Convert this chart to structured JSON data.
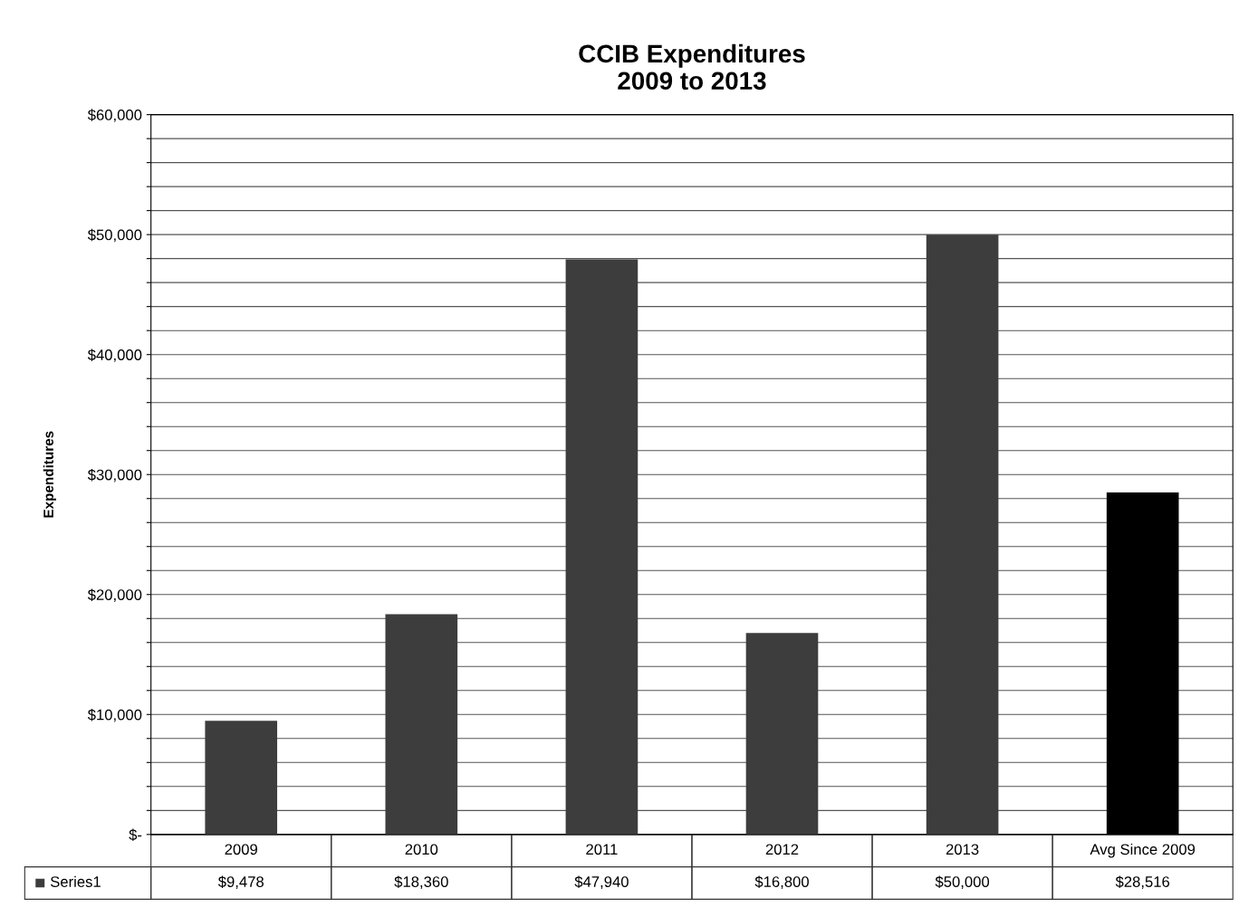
{
  "chart_data": {
    "type": "bar",
    "title": "CCIB Expenditures\n2009 to 2013",
    "ylabel": "Expenditures",
    "categories": [
      "2009",
      "2010",
      "2011",
      "2012",
      "2013",
      "Avg Since 2009"
    ],
    "series": [
      {
        "name": "Series1",
        "color": "#3d3d3d",
        "colors": [
          "#3d3d3d",
          "#3d3d3d",
          "#3d3d3d",
          "#3d3d3d",
          "#3d3d3d",
          "#000000"
        ],
        "values": [
          9478,
          18360,
          47940,
          16800,
          50000,
          28516
        ],
        "value_labels": [
          "$9,478",
          "$18,360",
          "$47,940",
          "$16,800",
          "$50,000",
          "$28,516"
        ]
      }
    ],
    "ylim": [
      0,
      60000
    ],
    "yticks": [
      {
        "value": 0,
        "label": "$-"
      },
      {
        "value": 2000,
        "label": null
      },
      {
        "value": 4000,
        "label": null
      },
      {
        "value": 6000,
        "label": null
      },
      {
        "value": 8000,
        "label": null
      },
      {
        "value": 10000,
        "label": "$10,000"
      },
      {
        "value": 12000,
        "label": null
      },
      {
        "value": 14000,
        "label": null
      },
      {
        "value": 16000,
        "label": null
      },
      {
        "value": 18000,
        "label": null
      },
      {
        "value": 20000,
        "label": "$20,000"
      },
      {
        "value": 22000,
        "label": null
      },
      {
        "value": 24000,
        "label": null
      },
      {
        "value": 26000,
        "label": null
      },
      {
        "value": 28000,
        "label": null
      },
      {
        "value": 30000,
        "label": "$30,000"
      },
      {
        "value": 32000,
        "label": null
      },
      {
        "value": 34000,
        "label": null
      },
      {
        "value": 36000,
        "label": null
      },
      {
        "value": 38000,
        "label": null
      },
      {
        "value": 40000,
        "label": "$40,000"
      },
      {
        "value": 42000,
        "label": null
      },
      {
        "value": 44000,
        "label": null
      },
      {
        "value": 46000,
        "label": null
      },
      {
        "value": 48000,
        "label": null
      },
      {
        "value": 50000,
        "label": "$50,000"
      },
      {
        "value": 52000,
        "label": null
      },
      {
        "value": 54000,
        "label": null
      },
      {
        "value": 56000,
        "label": null
      },
      {
        "value": 58000,
        "label": null
      },
      {
        "value": 60000,
        "label": "$60,000"
      }
    ],
    "grid": "y",
    "legend": "bottom left"
  }
}
